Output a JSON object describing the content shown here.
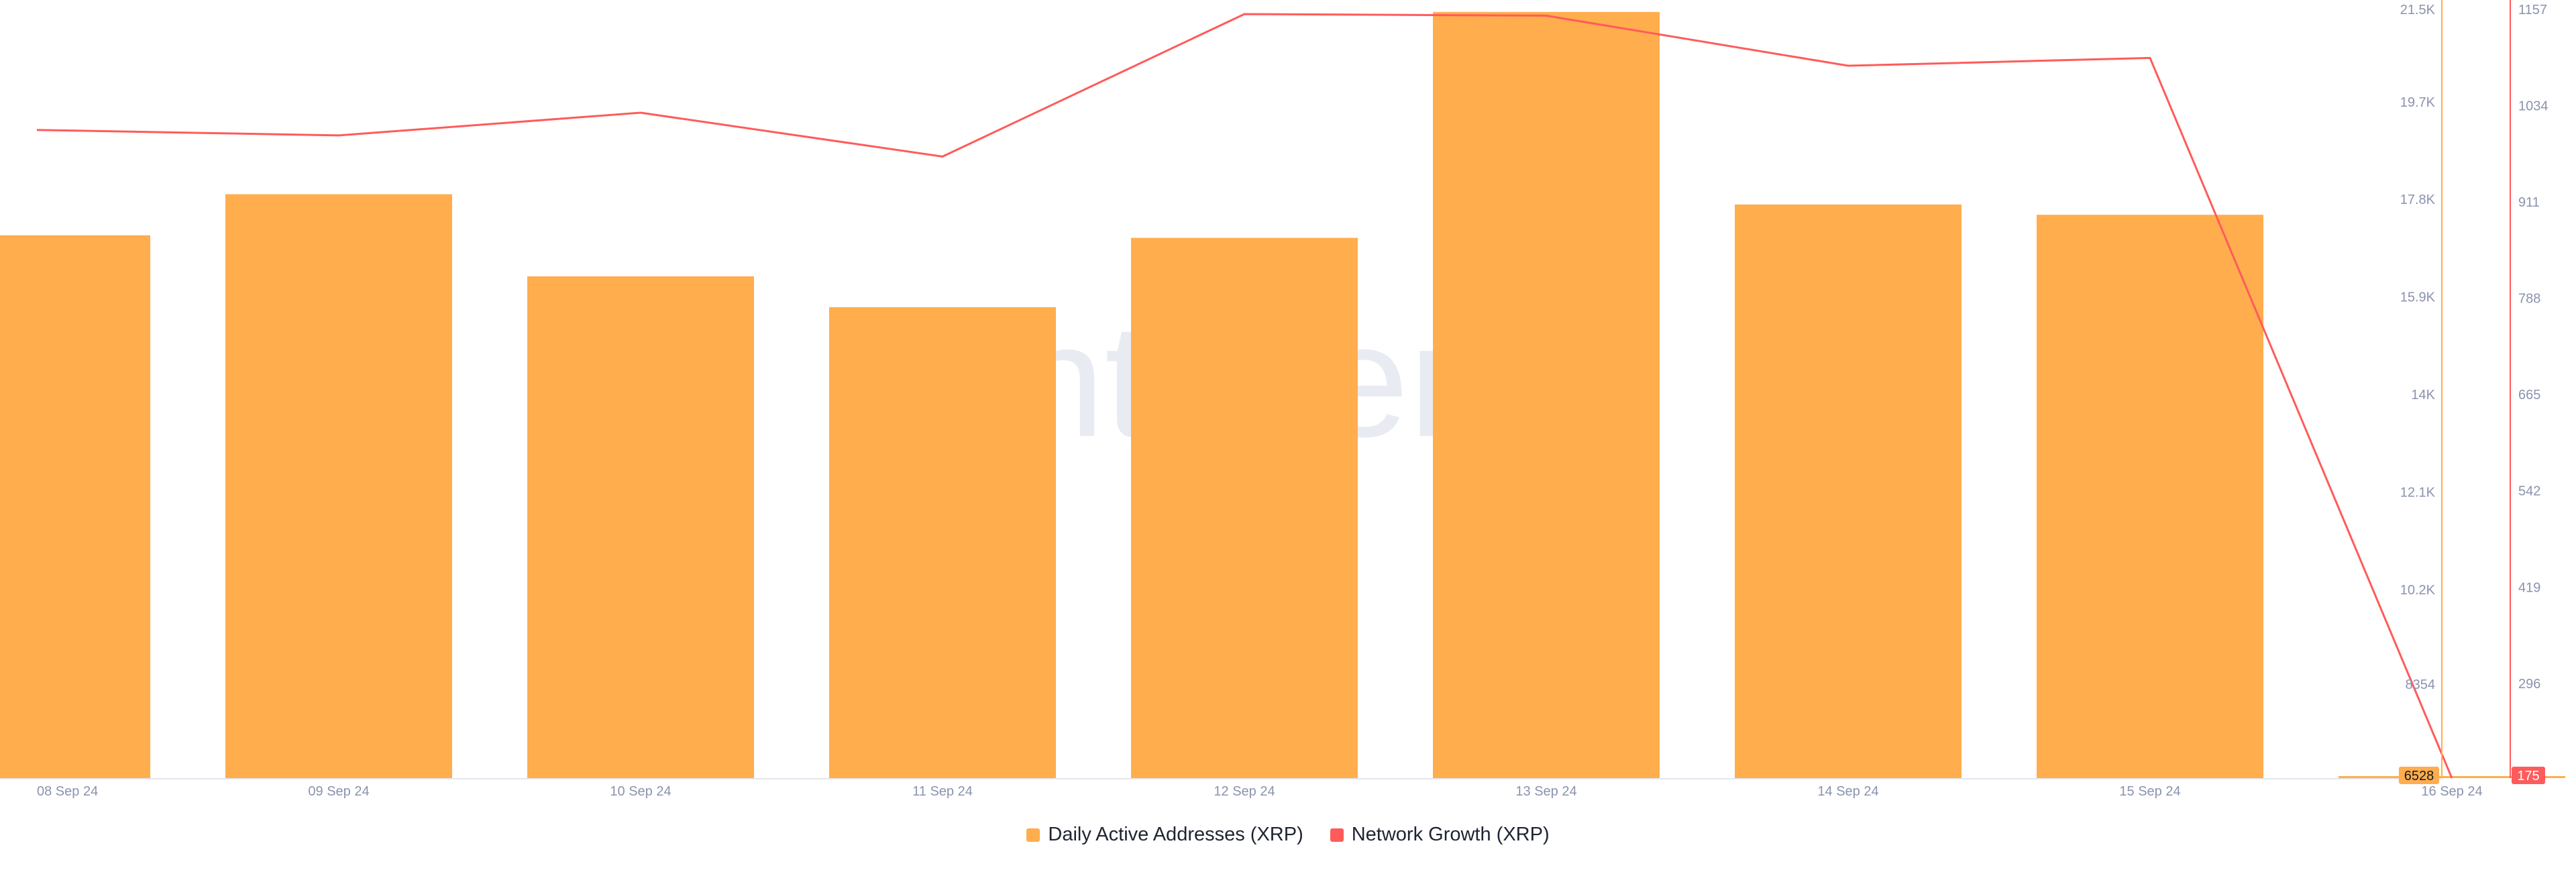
{
  "watermark": "santiment",
  "legend": [
    {
      "label": "Daily Active Addresses (XRP)",
      "color": "#ffad4d"
    },
    {
      "label": "Network Growth (XRP)",
      "color": "#ff5b5b"
    }
  ],
  "badges": {
    "left_axis_last": "6528",
    "right_axis_last": "175"
  },
  "chart_data": {
    "type": "bar",
    "categories": [
      "08 Sep 24",
      "09 Sep 24",
      "10 Sep 24",
      "11 Sep 24",
      "12 Sep 24",
      "13 Sep 24",
      "14 Sep 24",
      "15 Sep 24",
      "16 Sep 24"
    ],
    "x_tick_labels": [
      "08 Sep 24",
      "09 Sep 24",
      "10 Sep 24",
      "11 Sep 24",
      "12 Sep 24",
      "13 Sep 24",
      "14 Sep 24",
      "15 Sep 24",
      "16 Sep 24"
    ],
    "series": [
      {
        "name": "Daily Active Addresses (XRP)",
        "type": "bar",
        "axis": "left",
        "color": "#ffad4d",
        "values": [
          17100,
          17900,
          16300,
          15700,
          17050,
          21450,
          17700,
          17500,
          6530
        ]
      },
      {
        "name": "Network Growth (XRP)",
        "type": "line",
        "axis": "right",
        "color": "#ff5b5b",
        "values": [
          1003,
          996,
          1025,
          969,
          1151,
          1149,
          1085,
          1095,
          175
        ]
      }
    ],
    "left_axis": {
      "ticks": [
        8354,
        10200,
        12100,
        14000,
        15900,
        17800,
        19700,
        21500
      ],
      "tick_labels": [
        "8354",
        "10.2K",
        "12.1K",
        "14K",
        "15.9K",
        "17.8K",
        "19.7K",
        "21.5K"
      ],
      "ylim": [
        6528,
        21500
      ],
      "color": "#ffad4d"
    },
    "right_axis": {
      "ticks": [
        296,
        419,
        542,
        665,
        788,
        911,
        1034,
        1157
      ],
      "tick_labels": [
        "296",
        "419",
        "542",
        "665",
        "788",
        "911",
        "1034",
        "1157"
      ],
      "ylim": [
        175,
        1157
      ],
      "color": "#ff5b5b"
    },
    "grid": false,
    "legend_position": "bottom-center"
  }
}
